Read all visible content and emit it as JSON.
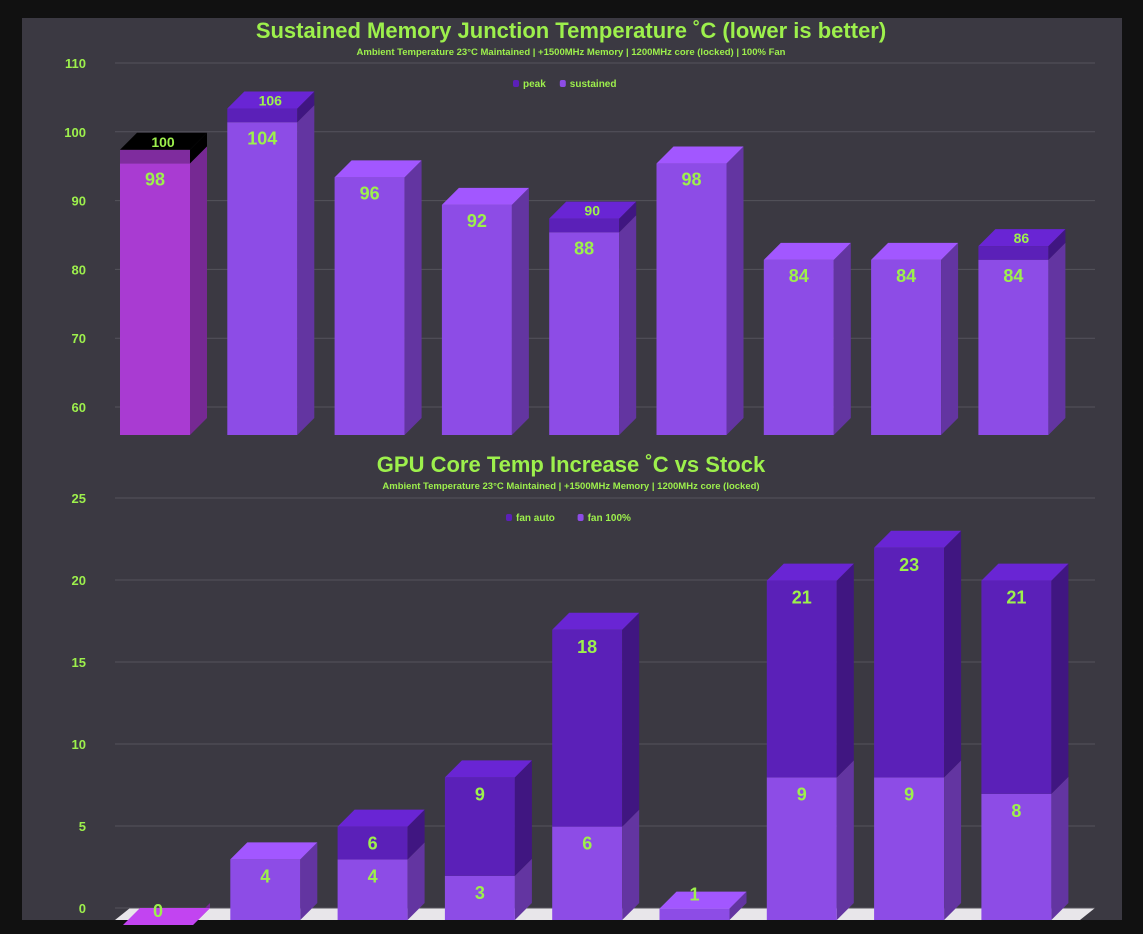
{
  "colors": {
    "background": "#3b3942",
    "text": "#9df04c",
    "grid": "#55535c",
    "highlight": "#a93bd2",
    "light": "#8d4ce6",
    "dark": "#5b20b8"
  },
  "chart_data": [
    {
      "type": "bar",
      "title": "Sustained Memory Junction Temperature ˚C (lower is better)",
      "subtitle": "Ambient Temperature 23°C Maintained | +1500MHz Memory | 1200MHz core (locked) | 100% Fan",
      "legend": [
        "peak",
        "sustained"
      ],
      "legend_position": "top",
      "yticks": [
        60,
        70,
        80,
        90,
        100,
        110
      ],
      "ylim": [
        60,
        110
      ],
      "grid": true,
      "series": [
        {
          "name": "peak",
          "values": [
            100,
            106,
            96,
            92,
            90,
            98,
            84,
            84,
            86
          ]
        },
        {
          "name": "sustained",
          "values": [
            98,
            104,
            96,
            92,
            88,
            98,
            84,
            84,
            84
          ]
        }
      ]
    },
    {
      "type": "bar",
      "title": "GPU Core Temp Increase ˚C vs Stock",
      "subtitle": "Ambient Temperature 23°C Maintained | +1500MHz Memory | 1200MHz core (locked)",
      "legend": [
        "fan auto",
        "fan 100%"
      ],
      "legend_position": "top",
      "yticks": [
        0,
        5,
        10,
        15,
        20,
        25
      ],
      "ylim": [
        0,
        25
      ],
      "grid": true,
      "series": [
        {
          "name": "fan auto",
          "values": [
            0,
            4,
            6,
            9,
            18,
            1,
            21,
            23,
            21
          ]
        },
        {
          "name": "fan 100%",
          "values": [
            0,
            4,
            4,
            3,
            6,
            1,
            9,
            9,
            8
          ]
        }
      ]
    }
  ]
}
